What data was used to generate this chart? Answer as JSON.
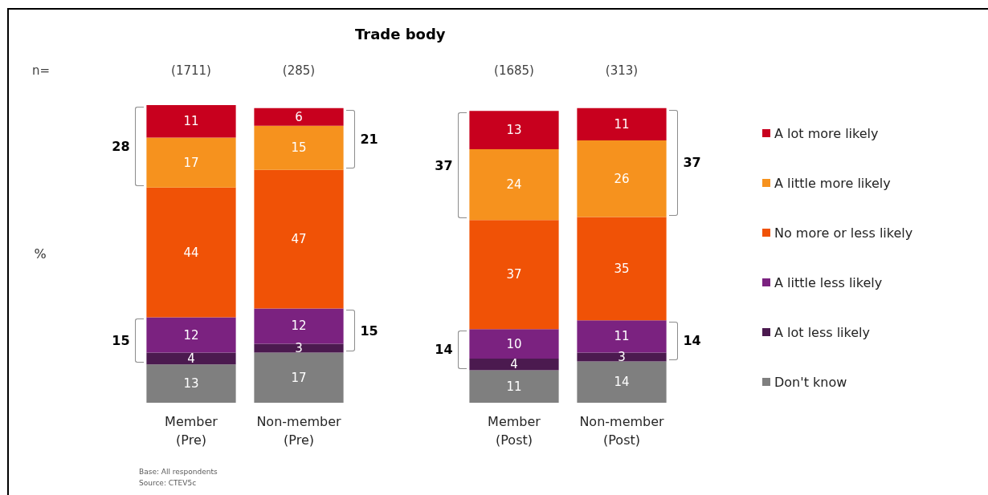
{
  "chart_data": {
    "type": "bar",
    "title": "Trade body",
    "categories": [
      "Member\n(Pre)",
      "Non-member\n(Pre)",
      null,
      "Member\n(Post)",
      "Non-member\n(Post)"
    ],
    "stacked": true,
    "data_labels": true,
    "legend": "right",
    "tick_labels": "x",
    "series": [
      {
        "name": "Don't know",
        "color": "#7f7f7f",
        "values": [
          13,
          17,
          null,
          11,
          14
        ]
      },
      {
        "name": "A lot less likely",
        "color": "#4b1a4f",
        "values": [
          4,
          3,
          null,
          4,
          3
        ]
      },
      {
        "name": "A little less likely",
        "color": "#7b2280",
        "values": [
          12,
          12,
          null,
          10,
          11
        ]
      },
      {
        "name": "No more or less likely",
        "color": "#f05206",
        "values": [
          44,
          47,
          null,
          37,
          35
        ]
      },
      {
        "name": "A little more likely",
        "color": "#f6921e",
        "values": [
          17,
          15,
          null,
          24,
          26
        ]
      },
      {
        "name": "A lot more likely",
        "color": "#c8001e",
        "values": [
          11,
          6,
          null,
          13,
          11
        ]
      }
    ],
    "annotations": [
      "n=",
      "%",
      "(1711)",
      "(285)",
      "(1685)",
      "(313)",
      "28",
      "15",
      "21",
      "15",
      "37",
      "14",
      "37",
      "14",
      "Base: All respondents",
      "Source: CTEV5c"
    ]
  }
}
